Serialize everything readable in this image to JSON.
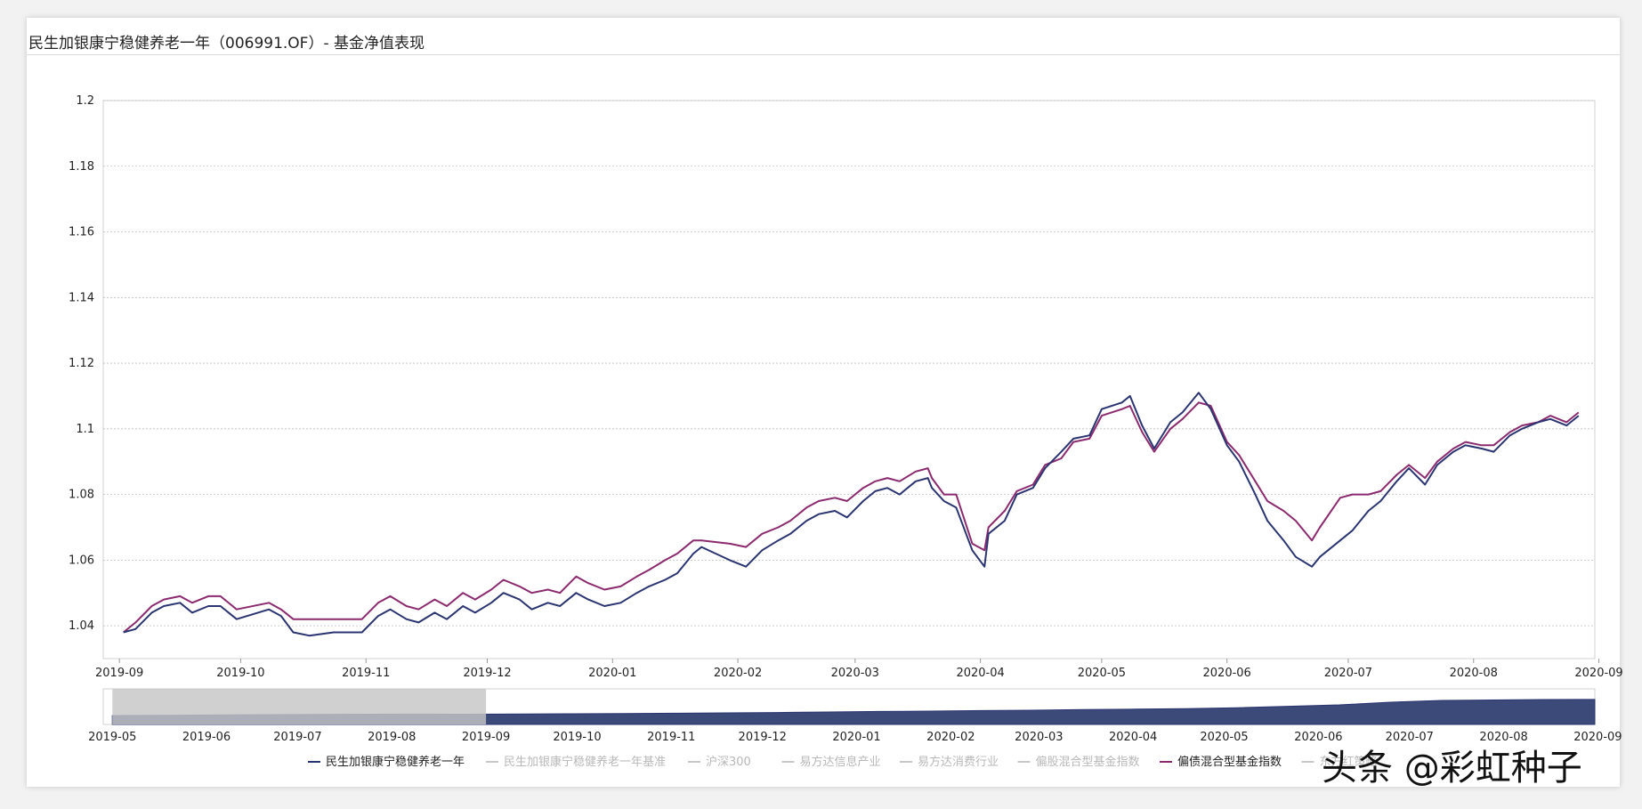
{
  "title": "民生加银康宁稳健养老一年（006991.OF）- 基金净值表现",
  "watermark": "头条 @彩虹种子",
  "colors": {
    "fund": "#2a3470",
    "index": "#8b2a6e",
    "inactive": "#c8c8c8",
    "navigator_fill": "#3b4a78",
    "navigator_selection": "#c6c6c6"
  },
  "legend": [
    {
      "label": "民生加银康宁稳健养老一年",
      "active": true,
      "color": "#2a3470"
    },
    {
      "label": "民生加银康宁稳健养老一年基准",
      "active": false,
      "color": "#c8c8c8"
    },
    {
      "label": "沪深300",
      "active": false,
      "color": "#c8c8c8"
    },
    {
      "label": "易方达信息产业",
      "active": false,
      "color": "#c8c8c8"
    },
    {
      "label": "易方达消费行业",
      "active": false,
      "color": "#c8c8c8"
    },
    {
      "label": "偏股混合型基金指数",
      "active": false,
      "color": "#c8c8c8"
    },
    {
      "label": "偏债混合型基金指数",
      "active": true,
      "color": "#8b2a6e"
    },
    {
      "label": "东方红策略",
      "active": false,
      "color": "#c8c8c8"
    }
  ],
  "chart_data": {
    "type": "line",
    "title": "民生加银康宁稳健养老一年（006991.OF）- 基金净值表现",
    "ylim": [
      1.03,
      1.2
    ],
    "yticks": [
      "1.04",
      "1.06",
      "1.08",
      "1.1",
      "1.12",
      "1.14",
      "1.16",
      "1.18",
      "1.2"
    ],
    "xlim": [
      "2019-08-28",
      "2020-08-31"
    ],
    "xticks": [
      "2019-09",
      "2019-10",
      "2019-11",
      "2019-12",
      "2020-01",
      "2020-02",
      "2020-03",
      "2020-04",
      "2020-05",
      "2020-06",
      "2020-07",
      "2020-08",
      "2020-09"
    ],
    "grid": true,
    "legend_position": "bottom",
    "series": [
      {
        "name": "民生加银康宁稳健养老一年",
        "color": "#2a3470",
        "points": [
          [
            "2019-09-02",
            1.038
          ],
          [
            "2019-09-05",
            1.039
          ],
          [
            "2019-09-09",
            1.044
          ],
          [
            "2019-09-12",
            1.046
          ],
          [
            "2019-09-16",
            1.047
          ],
          [
            "2019-09-19",
            1.044
          ],
          [
            "2019-09-23",
            1.046
          ],
          [
            "2019-09-26",
            1.046
          ],
          [
            "2019-09-30",
            1.042
          ],
          [
            "2019-10-08",
            1.045
          ],
          [
            "2019-10-11",
            1.043
          ],
          [
            "2019-10-14",
            1.038
          ],
          [
            "2019-10-18",
            1.037
          ],
          [
            "2019-10-24",
            1.038
          ],
          [
            "2019-10-31",
            1.038
          ],
          [
            "2019-11-04",
            1.043
          ],
          [
            "2019-11-07",
            1.045
          ],
          [
            "2019-11-11",
            1.042
          ],
          [
            "2019-11-14",
            1.041
          ],
          [
            "2019-11-18",
            1.044
          ],
          [
            "2019-11-21",
            1.042
          ],
          [
            "2019-11-25",
            1.046
          ],
          [
            "2019-11-28",
            1.044
          ],
          [
            "2019-12-02",
            1.047
          ],
          [
            "2019-12-05",
            1.05
          ],
          [
            "2019-12-09",
            1.048
          ],
          [
            "2019-12-12",
            1.045
          ],
          [
            "2019-12-16",
            1.047
          ],
          [
            "2019-12-19",
            1.046
          ],
          [
            "2019-12-23",
            1.05
          ],
          [
            "2019-12-26",
            1.048
          ],
          [
            "2019-12-30",
            1.046
          ],
          [
            "2020-01-03",
            1.047
          ],
          [
            "2020-01-07",
            1.05
          ],
          [
            "2020-01-10",
            1.052
          ],
          [
            "2020-01-14",
            1.054
          ],
          [
            "2020-01-17",
            1.056
          ],
          [
            "2020-01-21",
            1.062
          ],
          [
            "2020-01-23",
            1.064
          ],
          [
            "2020-01-30",
            1.06
          ],
          [
            "2020-02-03",
            1.058
          ],
          [
            "2020-02-07",
            1.063
          ],
          [
            "2020-02-11",
            1.066
          ],
          [
            "2020-02-14",
            1.068
          ],
          [
            "2020-02-18",
            1.072
          ],
          [
            "2020-02-21",
            1.074
          ],
          [
            "2020-02-25",
            1.075
          ],
          [
            "2020-02-28",
            1.073
          ],
          [
            "2020-03-03",
            1.078
          ],
          [
            "2020-03-06",
            1.081
          ],
          [
            "2020-03-09",
            1.082
          ],
          [
            "2020-03-12",
            1.08
          ],
          [
            "2020-03-16",
            1.084
          ],
          [
            "2020-03-19",
            1.085
          ],
          [
            "2020-03-20",
            1.082
          ],
          [
            "2020-03-23",
            1.078
          ],
          [
            "2020-03-26",
            1.076
          ],
          [
            "2020-03-30",
            1.063
          ],
          [
            "2020-04-02",
            1.058
          ],
          [
            "2020-04-03",
            1.068
          ],
          [
            "2020-04-07",
            1.072
          ],
          [
            "2020-04-10",
            1.08
          ],
          [
            "2020-04-14",
            1.082
          ],
          [
            "2020-04-17",
            1.088
          ],
          [
            "2020-04-21",
            1.093
          ],
          [
            "2020-04-24",
            1.097
          ],
          [
            "2020-04-28",
            1.098
          ],
          [
            "2020-05-01",
            1.106
          ],
          [
            "2020-05-06",
            1.108
          ],
          [
            "2020-05-08",
            1.11
          ],
          [
            "2020-05-11",
            1.101
          ],
          [
            "2020-05-14",
            1.094
          ],
          [
            "2020-05-18",
            1.102
          ],
          [
            "2020-05-21",
            1.105
          ],
          [
            "2020-05-25",
            1.111
          ],
          [
            "2020-05-28",
            1.106
          ],
          [
            "2020-06-01",
            1.095
          ],
          [
            "2020-06-04",
            1.09
          ],
          [
            "2020-06-08",
            1.08
          ],
          [
            "2020-06-11",
            1.072
          ],
          [
            "2020-06-15",
            1.066
          ],
          [
            "2020-06-18",
            1.061
          ],
          [
            "2020-06-22",
            1.058
          ],
          [
            "2020-06-24",
            1.061
          ],
          [
            "2020-06-29",
            1.066
          ],
          [
            "2020-07-02",
            1.069
          ],
          [
            "2020-07-06",
            1.075
          ],
          [
            "2020-07-09",
            1.078
          ],
          [
            "2020-07-13",
            1.084
          ],
          [
            "2020-07-16",
            1.088
          ],
          [
            "2020-07-20",
            1.083
          ],
          [
            "2020-07-23",
            1.089
          ],
          [
            "2020-07-27",
            1.093
          ],
          [
            "2020-07-30",
            1.095
          ],
          [
            "2020-08-03",
            1.094
          ],
          [
            "2020-08-06",
            1.093
          ],
          [
            "2020-08-10",
            1.098
          ],
          [
            "2020-08-13",
            1.1
          ],
          [
            "2020-08-17",
            1.102
          ],
          [
            "2020-08-20",
            1.103
          ],
          [
            "2020-08-24",
            1.101
          ],
          [
            "2020-08-27",
            1.104
          ]
        ]
      },
      {
        "name": "偏债混合型基金指数",
        "color": "#8b2a6e",
        "points": [
          [
            "2019-09-02",
            1.038
          ],
          [
            "2019-09-05",
            1.041
          ],
          [
            "2019-09-09",
            1.046
          ],
          [
            "2019-09-12",
            1.048
          ],
          [
            "2019-09-16",
            1.049
          ],
          [
            "2019-09-19",
            1.047
          ],
          [
            "2019-09-23",
            1.049
          ],
          [
            "2019-09-26",
            1.049
          ],
          [
            "2019-09-30",
            1.045
          ],
          [
            "2019-10-08",
            1.047
          ],
          [
            "2019-10-11",
            1.045
          ],
          [
            "2019-10-14",
            1.042
          ],
          [
            "2019-10-18",
            1.042
          ],
          [
            "2019-10-24",
            1.042
          ],
          [
            "2019-10-31",
            1.042
          ],
          [
            "2019-11-04",
            1.047
          ],
          [
            "2019-11-07",
            1.049
          ],
          [
            "2019-11-11",
            1.046
          ],
          [
            "2019-11-14",
            1.045
          ],
          [
            "2019-11-18",
            1.048
          ],
          [
            "2019-11-21",
            1.046
          ],
          [
            "2019-11-25",
            1.05
          ],
          [
            "2019-11-28",
            1.048
          ],
          [
            "2019-12-02",
            1.051
          ],
          [
            "2019-12-05",
            1.054
          ],
          [
            "2019-12-09",
            1.052
          ],
          [
            "2019-12-12",
            1.05
          ],
          [
            "2019-12-16",
            1.051
          ],
          [
            "2019-12-19",
            1.05
          ],
          [
            "2019-12-23",
            1.055
          ],
          [
            "2019-12-26",
            1.053
          ],
          [
            "2019-12-30",
            1.051
          ],
          [
            "2020-01-03",
            1.052
          ],
          [
            "2020-01-07",
            1.055
          ],
          [
            "2020-01-10",
            1.057
          ],
          [
            "2020-01-14",
            1.06
          ],
          [
            "2020-01-17",
            1.062
          ],
          [
            "2020-01-21",
            1.066
          ],
          [
            "2020-01-23",
            1.066
          ],
          [
            "2020-01-30",
            1.065
          ],
          [
            "2020-02-03",
            1.064
          ],
          [
            "2020-02-07",
            1.068
          ],
          [
            "2020-02-11",
            1.07
          ],
          [
            "2020-02-14",
            1.072
          ],
          [
            "2020-02-18",
            1.076
          ],
          [
            "2020-02-21",
            1.078
          ],
          [
            "2020-02-25",
            1.079
          ],
          [
            "2020-02-28",
            1.078
          ],
          [
            "2020-03-03",
            1.082
          ],
          [
            "2020-03-06",
            1.084
          ],
          [
            "2020-03-09",
            1.085
          ],
          [
            "2020-03-12",
            1.084
          ],
          [
            "2020-03-16",
            1.087
          ],
          [
            "2020-03-19",
            1.088
          ],
          [
            "2020-03-20",
            1.085
          ],
          [
            "2020-03-23",
            1.08
          ],
          [
            "2020-03-26",
            1.08
          ],
          [
            "2020-03-30",
            1.065
          ],
          [
            "2020-04-02",
            1.063
          ],
          [
            "2020-04-03",
            1.07
          ],
          [
            "2020-04-07",
            1.075
          ],
          [
            "2020-04-10",
            1.081
          ],
          [
            "2020-04-14",
            1.083
          ],
          [
            "2020-04-17",
            1.089
          ],
          [
            "2020-04-21",
            1.091
          ],
          [
            "2020-04-24",
            1.096
          ],
          [
            "2020-04-28",
            1.097
          ],
          [
            "2020-05-01",
            1.104
          ],
          [
            "2020-05-06",
            1.106
          ],
          [
            "2020-05-08",
            1.107
          ],
          [
            "2020-05-11",
            1.099
          ],
          [
            "2020-05-14",
            1.093
          ],
          [
            "2020-05-18",
            1.1
          ],
          [
            "2020-05-21",
            1.103
          ],
          [
            "2020-05-25",
            1.108
          ],
          [
            "2020-05-28",
            1.107
          ],
          [
            "2020-06-01",
            1.096
          ],
          [
            "2020-06-04",
            1.092
          ],
          [
            "2020-06-08",
            1.084
          ],
          [
            "2020-06-11",
            1.078
          ],
          [
            "2020-06-15",
            1.075
          ],
          [
            "2020-06-18",
            1.072
          ],
          [
            "2020-06-22",
            1.066
          ],
          [
            "2020-06-24",
            1.07
          ],
          [
            "2020-06-29",
            1.079
          ],
          [
            "2020-07-02",
            1.08
          ],
          [
            "2020-07-06",
            1.08
          ],
          [
            "2020-07-09",
            1.081
          ],
          [
            "2020-07-13",
            1.086
          ],
          [
            "2020-07-16",
            1.089
          ],
          [
            "2020-07-20",
            1.085
          ],
          [
            "2020-07-23",
            1.09
          ],
          [
            "2020-07-27",
            1.094
          ],
          [
            "2020-07-30",
            1.096
          ],
          [
            "2020-08-03",
            1.095
          ],
          [
            "2020-08-06",
            1.095
          ],
          [
            "2020-08-10",
            1.099
          ],
          [
            "2020-08-13",
            1.101
          ],
          [
            "2020-08-17",
            1.102
          ],
          [
            "2020-08-20",
            1.104
          ],
          [
            "2020-08-24",
            1.102
          ],
          [
            "2020-08-27",
            1.105
          ]
        ]
      }
    ]
  },
  "navigator": {
    "xlim": [
      "2019-04-28",
      "2020-08-31"
    ],
    "xticks": [
      "2019-05",
      "2019-06",
      "2019-07",
      "2019-08",
      "2019-09",
      "2019-10",
      "2019-11",
      "2019-12",
      "2020-01",
      "2020-02",
      "2020-03",
      "2020-04",
      "2020-05",
      "2020-06",
      "2020-07",
      "2020-08",
      "2020-09"
    ],
    "selection": [
      "2019-05-01",
      "2019-09-01"
    ],
    "area_values": [
      1.0,
      1.002,
      1.006,
      1.01,
      1.012,
      1.015,
      1.016,
      1.015,
      1.018,
      1.02,
      1.022,
      1.026,
      1.03,
      1.034,
      1.04,
      1.046,
      1.05,
      1.056,
      1.06,
      1.068,
      1.072,
      1.078,
      1.088,
      1.104,
      1.12,
      1.15,
      1.17,
      1.175,
      1.18,
      1.181
    ]
  }
}
